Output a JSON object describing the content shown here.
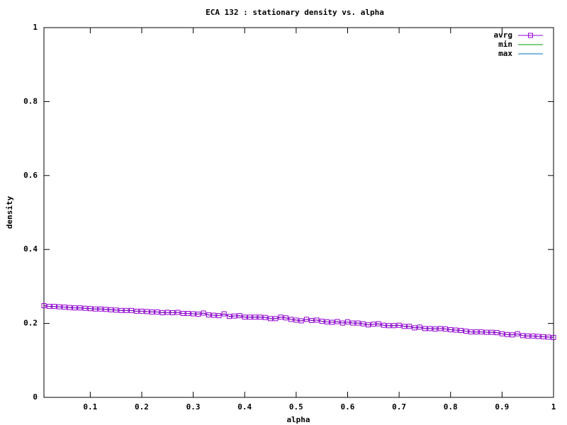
{
  "chart_data": {
    "type": "line",
    "title": "ECA 132 : stationary density vs. alpha",
    "x_label": "alpha",
    "y_label": "density",
    "x": [
      0.01,
      0.02,
      0.03,
      0.04,
      0.05,
      0.06,
      0.07,
      0.08,
      0.09,
      0.1,
      0.11,
      0.12,
      0.13,
      0.14,
      0.15,
      0.16,
      0.17,
      0.18,
      0.19,
      0.2,
      0.21,
      0.22,
      0.23,
      0.24,
      0.25,
      0.26,
      0.27,
      0.28,
      0.29,
      0.3,
      0.31,
      0.32,
      0.33,
      0.34,
      0.35,
      0.36,
      0.37,
      0.38,
      0.39,
      0.4,
      0.41,
      0.42,
      0.43,
      0.44,
      0.45,
      0.46,
      0.47,
      0.48,
      0.49,
      0.5,
      0.51,
      0.52,
      0.53,
      0.54,
      0.55,
      0.56,
      0.57,
      0.58,
      0.59,
      0.6,
      0.61,
      0.62,
      0.63,
      0.64,
      0.65,
      0.66,
      0.67,
      0.68,
      0.69,
      0.7,
      0.71,
      0.72,
      0.73,
      0.74,
      0.75,
      0.76,
      0.77,
      0.78,
      0.79,
      0.8,
      0.81,
      0.82,
      0.83,
      0.84,
      0.85,
      0.86,
      0.87,
      0.88,
      0.89,
      0.9,
      0.91,
      0.92,
      0.93,
      0.94,
      0.95,
      0.96,
      0.97,
      0.98,
      0.99,
      1
    ],
    "series": [
      {
        "name": "avrg",
        "color": "#9400d3",
        "marker": "square",
        "values": [
          0.248,
          0.246,
          0.246,
          0.245,
          0.244,
          0.243,
          0.242,
          0.242,
          0.241,
          0.24,
          0.239,
          0.239,
          0.238,
          0.237,
          0.236,
          0.235,
          0.235,
          0.235,
          0.233,
          0.233,
          0.232,
          0.231,
          0.231,
          0.229,
          0.23,
          0.229,
          0.23,
          0.227,
          0.227,
          0.226,
          0.225,
          0.228,
          0.223,
          0.222,
          0.221,
          0.226,
          0.219,
          0.22,
          0.221,
          0.217,
          0.217,
          0.217,
          0.217,
          0.216,
          0.213,
          0.213,
          0.217,
          0.215,
          0.211,
          0.209,
          0.207,
          0.211,
          0.208,
          0.209,
          0.206,
          0.204,
          0.203,
          0.205,
          0.201,
          0.204,
          0.201,
          0.201,
          0.199,
          0.196,
          0.198,
          0.199,
          0.195,
          0.194,
          0.194,
          0.195,
          0.192,
          0.192,
          0.188,
          0.19,
          0.186,
          0.186,
          0.185,
          0.186,
          0.185,
          0.183,
          0.182,
          0.181,
          0.179,
          0.177,
          0.177,
          0.177,
          0.176,
          0.176,
          0.175,
          0.172,
          0.17,
          0.169,
          0.172,
          0.167,
          0.166,
          0.166,
          0.165,
          0.164,
          0.163,
          0.162
        ]
      },
      {
        "name": "min",
        "color": "#009e00",
        "values": [
          0.248,
          0.246,
          0.246,
          0.245,
          0.244,
          0.243,
          0.242,
          0.242,
          0.241,
          0.24,
          0.239,
          0.239,
          0.238,
          0.237,
          0.236,
          0.235,
          0.235,
          0.235,
          0.233,
          0.233,
          0.232,
          0.231,
          0.231,
          0.229,
          0.23,
          0.229,
          0.23,
          0.227,
          0.227,
          0.226,
          0.225,
          0.228,
          0.223,
          0.222,
          0.221,
          0.226,
          0.219,
          0.22,
          0.221,
          0.217,
          0.217,
          0.217,
          0.217,
          0.216,
          0.213,
          0.213,
          0.217,
          0.215,
          0.211,
          0.209,
          0.207,
          0.211,
          0.208,
          0.209,
          0.206,
          0.204,
          0.203,
          0.205,
          0.201,
          0.204,
          0.201,
          0.201,
          0.199,
          0.196,
          0.198,
          0.199,
          0.195,
          0.194,
          0.194,
          0.195,
          0.192,
          0.192,
          0.188,
          0.19,
          0.186,
          0.186,
          0.185,
          0.186,
          0.185,
          0.183,
          0.182,
          0.181,
          0.179,
          0.177,
          0.177,
          0.177,
          0.176,
          0.176,
          0.175,
          0.172,
          0.17,
          0.169,
          0.172,
          0.167,
          0.166,
          0.166,
          0.165,
          0.164,
          0.163,
          0.162
        ]
      },
      {
        "name": "max",
        "color": "#0072bd",
        "values": [
          0.248,
          0.246,
          0.246,
          0.245,
          0.244,
          0.243,
          0.242,
          0.242,
          0.241,
          0.24,
          0.239,
          0.239,
          0.238,
          0.237,
          0.236,
          0.235,
          0.235,
          0.235,
          0.233,
          0.233,
          0.232,
          0.231,
          0.231,
          0.229,
          0.23,
          0.229,
          0.23,
          0.227,
          0.227,
          0.226,
          0.225,
          0.228,
          0.223,
          0.222,
          0.221,
          0.226,
          0.219,
          0.22,
          0.221,
          0.217,
          0.217,
          0.217,
          0.217,
          0.216,
          0.213,
          0.213,
          0.217,
          0.215,
          0.211,
          0.209,
          0.207,
          0.211,
          0.208,
          0.209,
          0.206,
          0.204,
          0.203,
          0.205,
          0.201,
          0.204,
          0.201,
          0.201,
          0.199,
          0.196,
          0.198,
          0.199,
          0.195,
          0.194,
          0.194,
          0.195,
          0.192,
          0.192,
          0.188,
          0.19,
          0.186,
          0.186,
          0.185,
          0.186,
          0.185,
          0.183,
          0.182,
          0.181,
          0.179,
          0.177,
          0.177,
          0.177,
          0.176,
          0.176,
          0.175,
          0.172,
          0.17,
          0.169,
          0.172,
          0.167,
          0.166,
          0.166,
          0.165,
          0.164,
          0.163,
          0.162
        ]
      }
    ],
    "xlim": [
      0.01,
      1
    ],
    "xticks": [
      0.1,
      0.2,
      0.3,
      0.4,
      0.5,
      0.6,
      0.7,
      0.8,
      0.9,
      1
    ],
    "ylim": [
      0,
      1
    ],
    "yticks": [
      0,
      0.2,
      0.4,
      0.6,
      0.8,
      1
    ],
    "grid": false,
    "legend": "top-right"
  }
}
